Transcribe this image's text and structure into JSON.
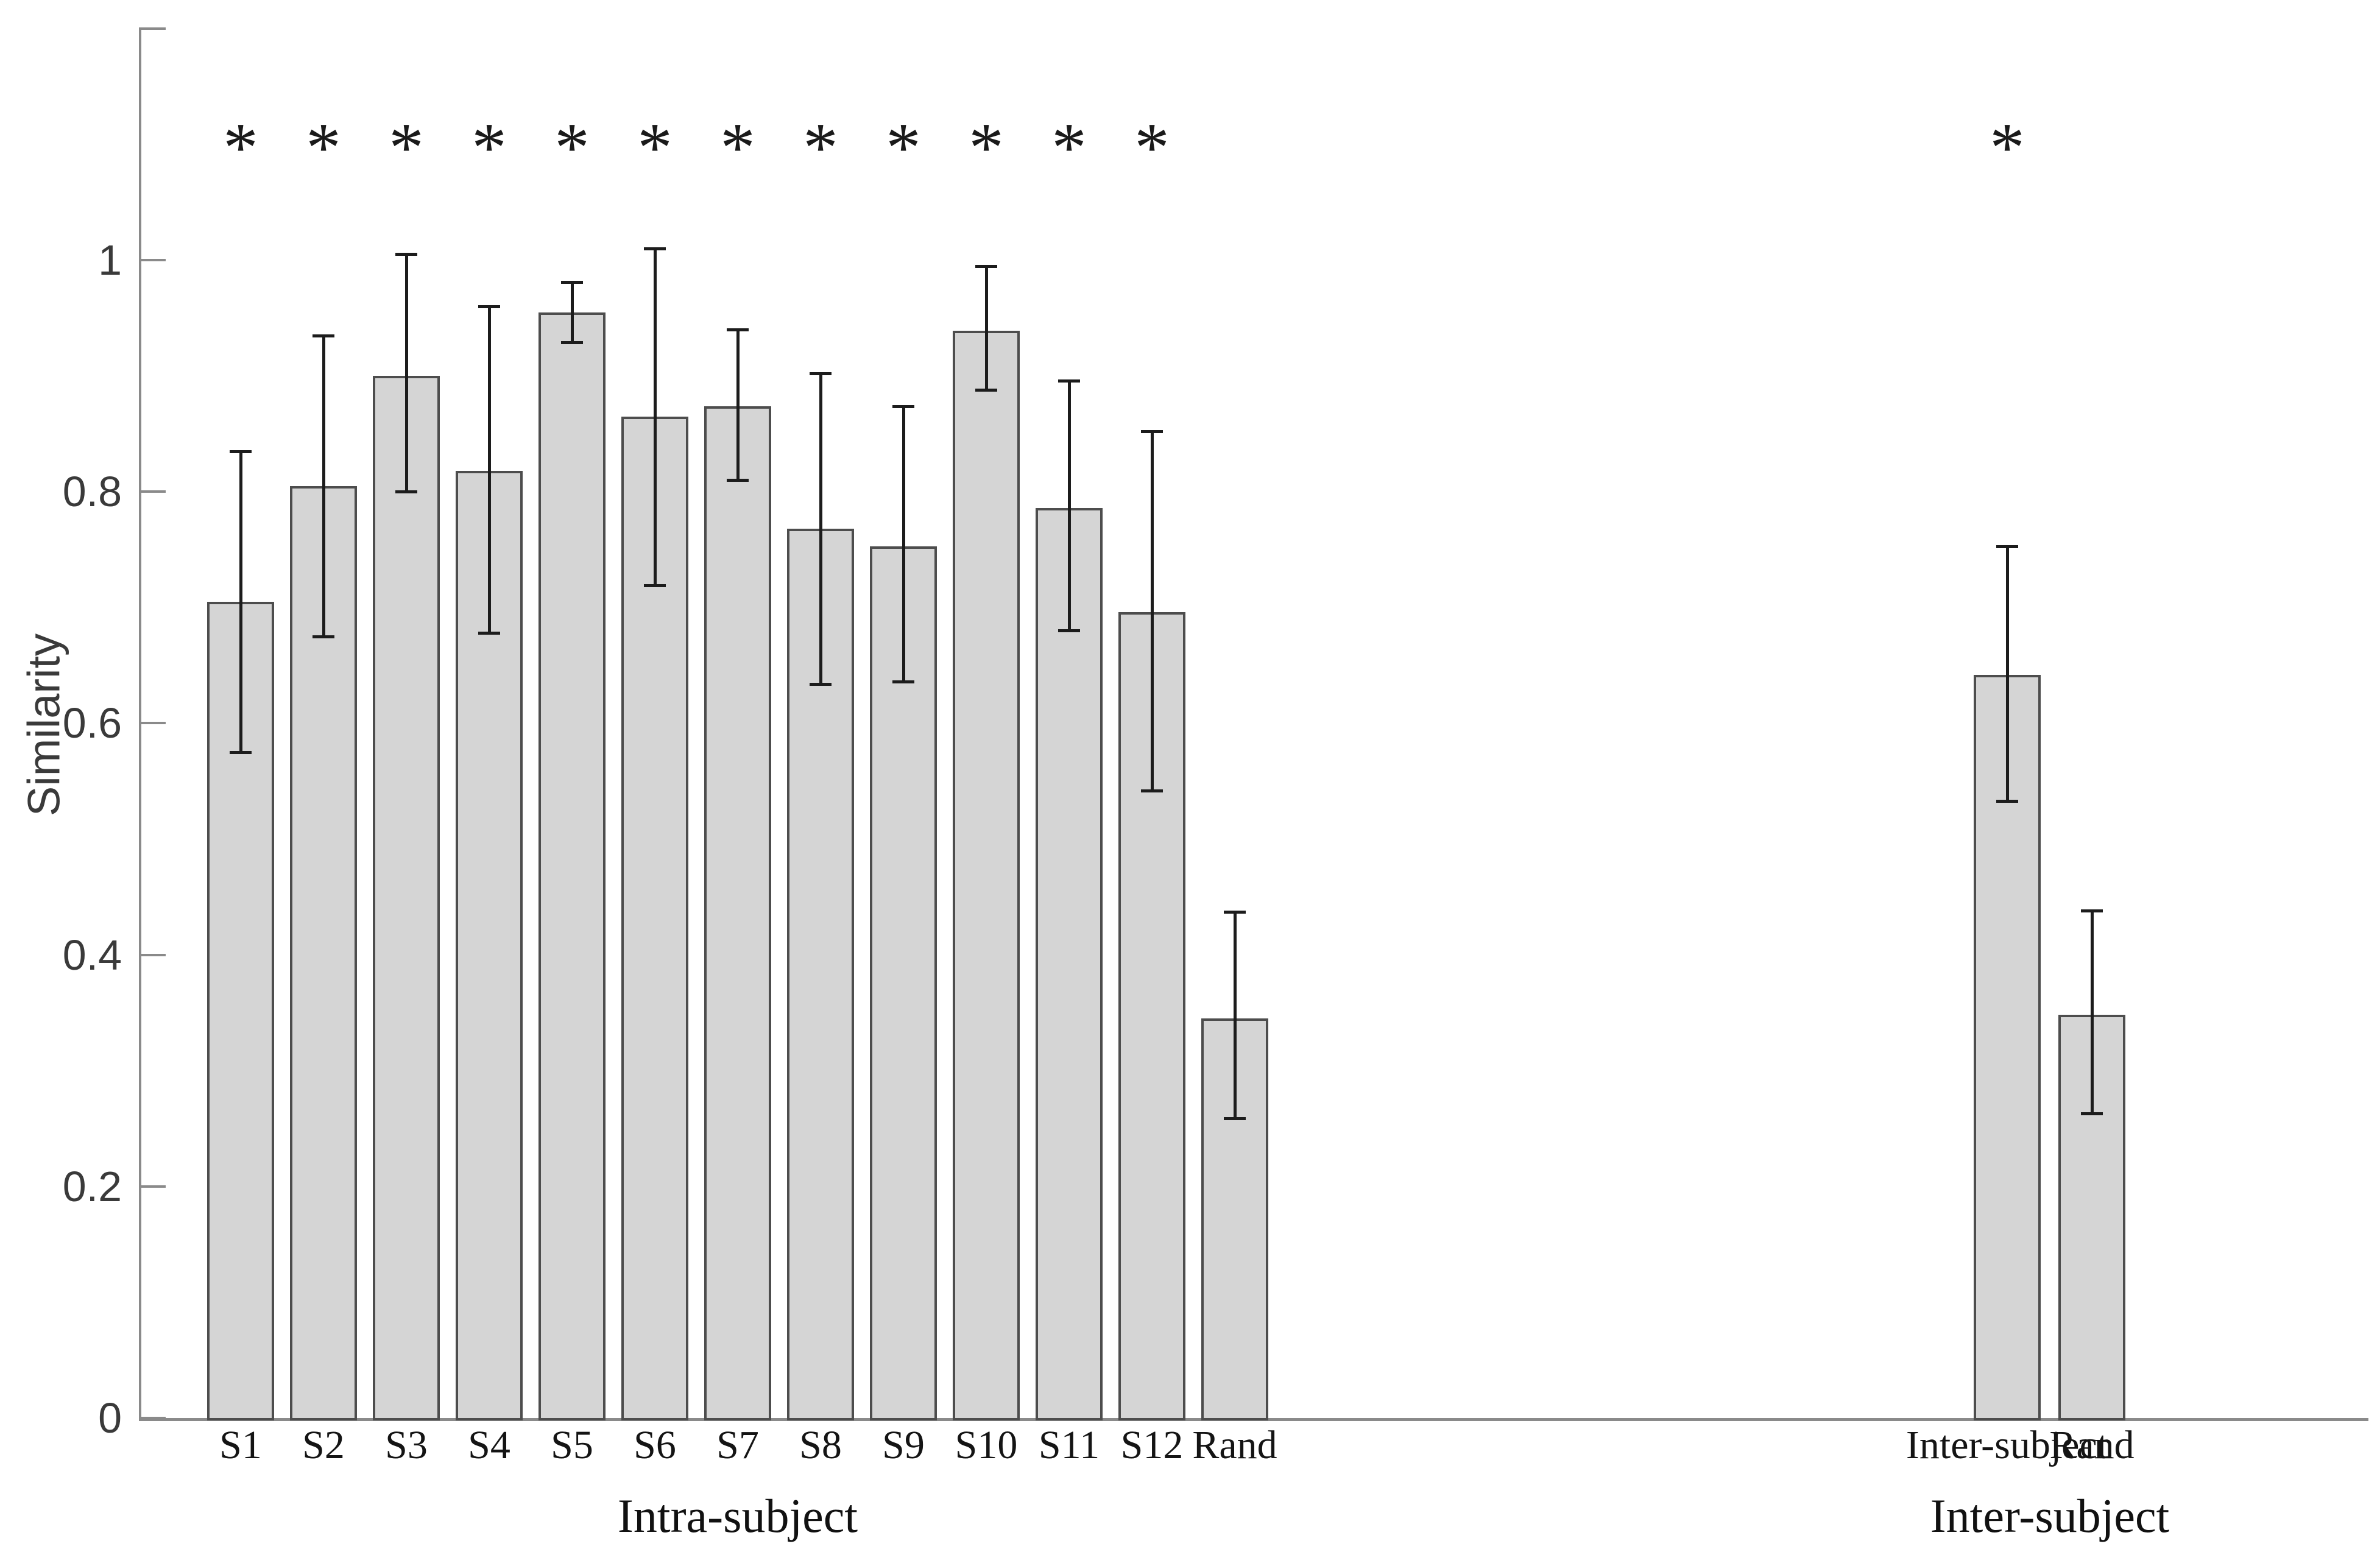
{
  "figure": {
    "background": "#ffffff",
    "description_visible_text_only": true
  },
  "chart_data": {
    "type": "bar",
    "title": "",
    "ylabel": "Similarity",
    "xlabel": "",
    "ylim": [
      0,
      1.2
    ],
    "grid": false,
    "legend": null,
    "significance_marker": "*",
    "ytick_values": [
      0,
      0.2,
      0.4,
      0.6,
      0.8,
      1
    ],
    "ytick_labels": [
      "0",
      "0.2",
      "0.4",
      "0.6",
      "0.8",
      "1"
    ],
    "axis_top_tick": 1.2,
    "colors": {
      "bar_fill": "#d5d5d5",
      "bar_edge": "#4d4d4d",
      "axis": "#8a8a8a",
      "error_bar": "#1c1c1c",
      "ytick_label": "#3a3a3a",
      "xtick_label": "#141414"
    },
    "groups": [
      {
        "label": "Intra-subject",
        "bars": [
          {
            "label": "S1",
            "value": 0.705,
            "err_low": 0.575,
            "err_high": 0.835,
            "significant": true
          },
          {
            "label": "S2",
            "value": 0.805,
            "err_low": 0.675,
            "err_high": 0.935,
            "significant": true
          },
          {
            "label": "S3",
            "value": 0.9,
            "err_low": 0.8,
            "err_high": 1.005,
            "significant": true
          },
          {
            "label": "S4",
            "value": 0.818,
            "err_low": 0.678,
            "err_high": 0.96,
            "significant": true
          },
          {
            "label": "S5",
            "value": 0.955,
            "err_low": 0.929,
            "err_high": 0.981,
            "significant": true
          },
          {
            "label": "S6",
            "value": 0.865,
            "err_low": 0.719,
            "err_high": 1.01,
            "significant": true
          },
          {
            "label": "S7",
            "value": 0.874,
            "err_low": 0.81,
            "err_high": 0.94,
            "significant": true
          },
          {
            "label": "S8",
            "value": 0.768,
            "err_low": 0.634,
            "err_high": 0.902,
            "significant": true
          },
          {
            "label": "S9",
            "value": 0.753,
            "err_low": 0.636,
            "err_high": 0.874,
            "significant": true
          },
          {
            "label": "S10",
            "value": 0.939,
            "err_low": 0.888,
            "err_high": 0.995,
            "significant": true
          },
          {
            "label": "S11",
            "value": 0.786,
            "err_low": 0.68,
            "err_high": 0.896,
            "significant": true
          },
          {
            "label": "S12",
            "value": 0.696,
            "err_low": 0.542,
            "err_high": 0.852,
            "significant": true
          },
          {
            "label": "Rand",
            "value": 0.345,
            "err_low": 0.259,
            "err_high": 0.437,
            "significant": false
          }
        ]
      },
      {
        "label": "Inter-subject",
        "bars": [
          {
            "label": "Inter-subject",
            "value": 0.642,
            "err_low": 0.533,
            "err_high": 0.753,
            "significant": true
          },
          {
            "label": "Rand",
            "value": 0.348,
            "err_low": 0.263,
            "err_high": 0.438,
            "significant": false
          }
        ]
      }
    ]
  }
}
